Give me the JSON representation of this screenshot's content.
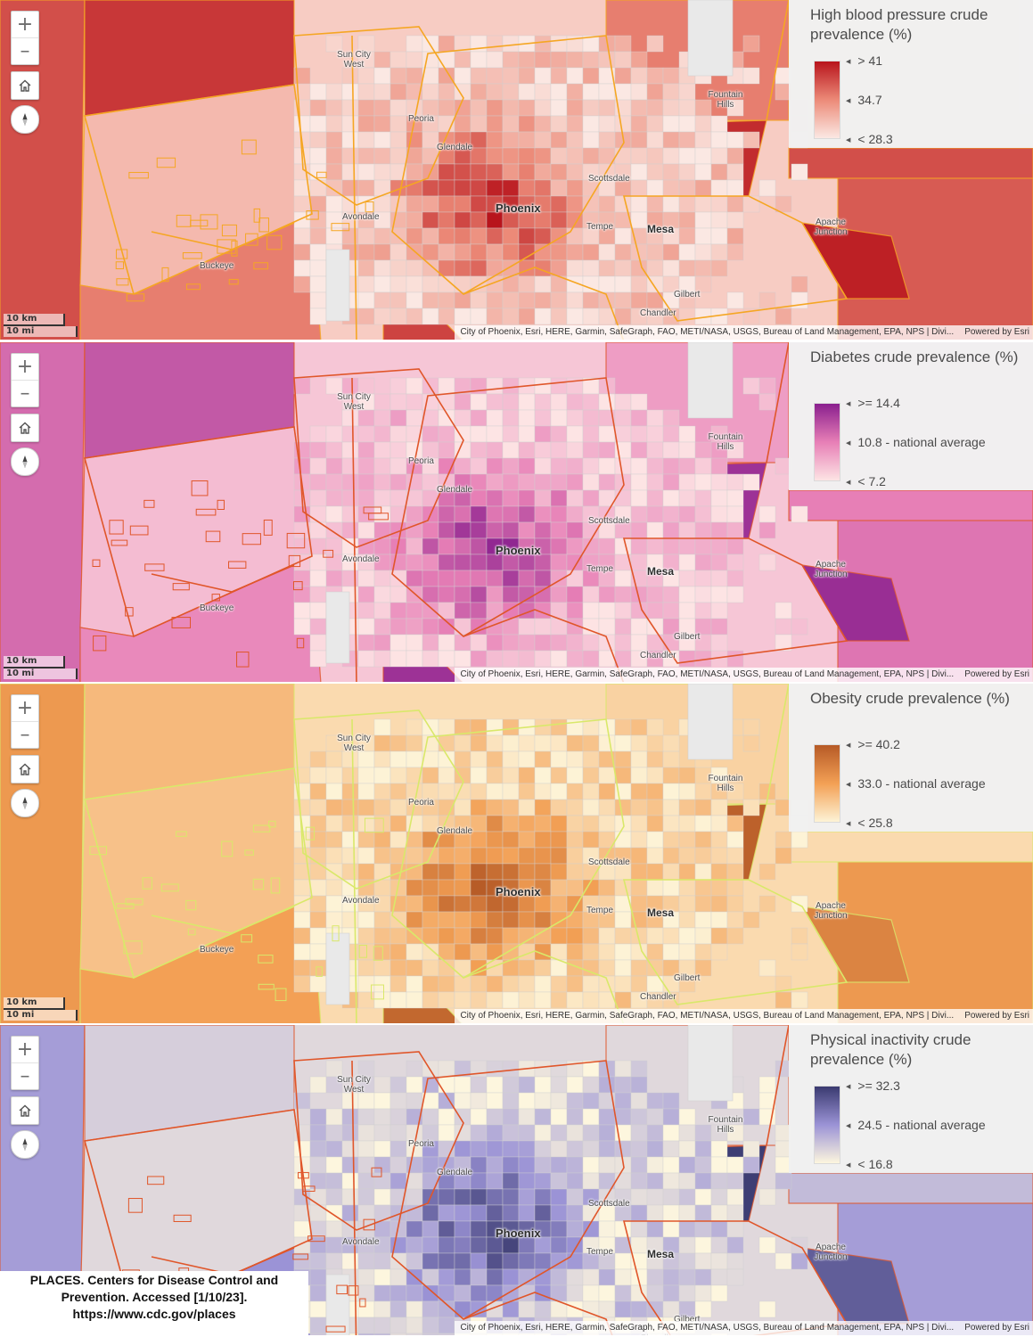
{
  "panels": [
    {
      "id": "blood-pressure",
      "legend_title": "High blood pressure crude prevalence (%)",
      "ticks": [
        "> 41",
        "34.7",
        "< 28.3"
      ],
      "colors": {
        "low": "#fbe8e3",
        "mid": "#ec8a78",
        "high": "#b8141c",
        "boundary": "#f5a623"
      }
    },
    {
      "id": "diabetes",
      "legend_title": "Diabetes crude prevalence (%)",
      "ticks": [
        ">= 14.4",
        "10.8 - national average",
        "< 7.2"
      ],
      "colors": {
        "low": "#fde4e4",
        "mid": "#e77fb6",
        "high": "#8a1f8e",
        "boundary": "#e0562a"
      }
    },
    {
      "id": "obesity",
      "legend_title": "Obesity crude prevalence (%)",
      "ticks": [
        ">= 40.2",
        "33.0 - national average",
        "< 25.8"
      ],
      "colors": {
        "low": "#fdf3d6",
        "mid": "#f3a055",
        "high": "#b65a26",
        "boundary": "#d9e86a"
      }
    },
    {
      "id": "physical-inactivity",
      "legend_title": "Physical inactivity crude prevalence (%)",
      "ticks": [
        ">= 32.3",
        "24.5 - national average",
        "< 16.8"
      ],
      "colors": {
        "low": "#fdf6de",
        "mid": "#9b93d6",
        "high": "#3a3a70",
        "boundary": "#e0562a"
      }
    }
  ],
  "controls": {
    "zoom_in": "+",
    "zoom_out": "–"
  },
  "scale": {
    "km": "10 km",
    "mi": "10 mi"
  },
  "attribution": {
    "text": "City of Phoenix, Esri, HERE, Garmin, SafeGraph, FAO, METI/NASA, USGS, Bureau of Land Management, EPA, NPS | Divi...",
    "powered": "Powered by Esri"
  },
  "cities": {
    "phoenix": "Phoenix",
    "mesa": "Mesa",
    "sun_city_west": "Sun City West",
    "peoria": "Peoria",
    "glendale": "Glendale",
    "scottsdale": "Scottsdale",
    "fountain_hills": "Fountain Hills",
    "avondale": "Avondale",
    "tempe": "Tempe",
    "apache_junction": "Apache Junction",
    "buckeye": "Buckeye",
    "gilbert": "Gilbert",
    "chandler": "Chandler"
  },
  "source_note": {
    "line1": "PLACES. Centers for Disease Control and",
    "line2": "Prevention. Accessed [1/10/23].",
    "line3": "https://www.cdc.gov/places"
  }
}
